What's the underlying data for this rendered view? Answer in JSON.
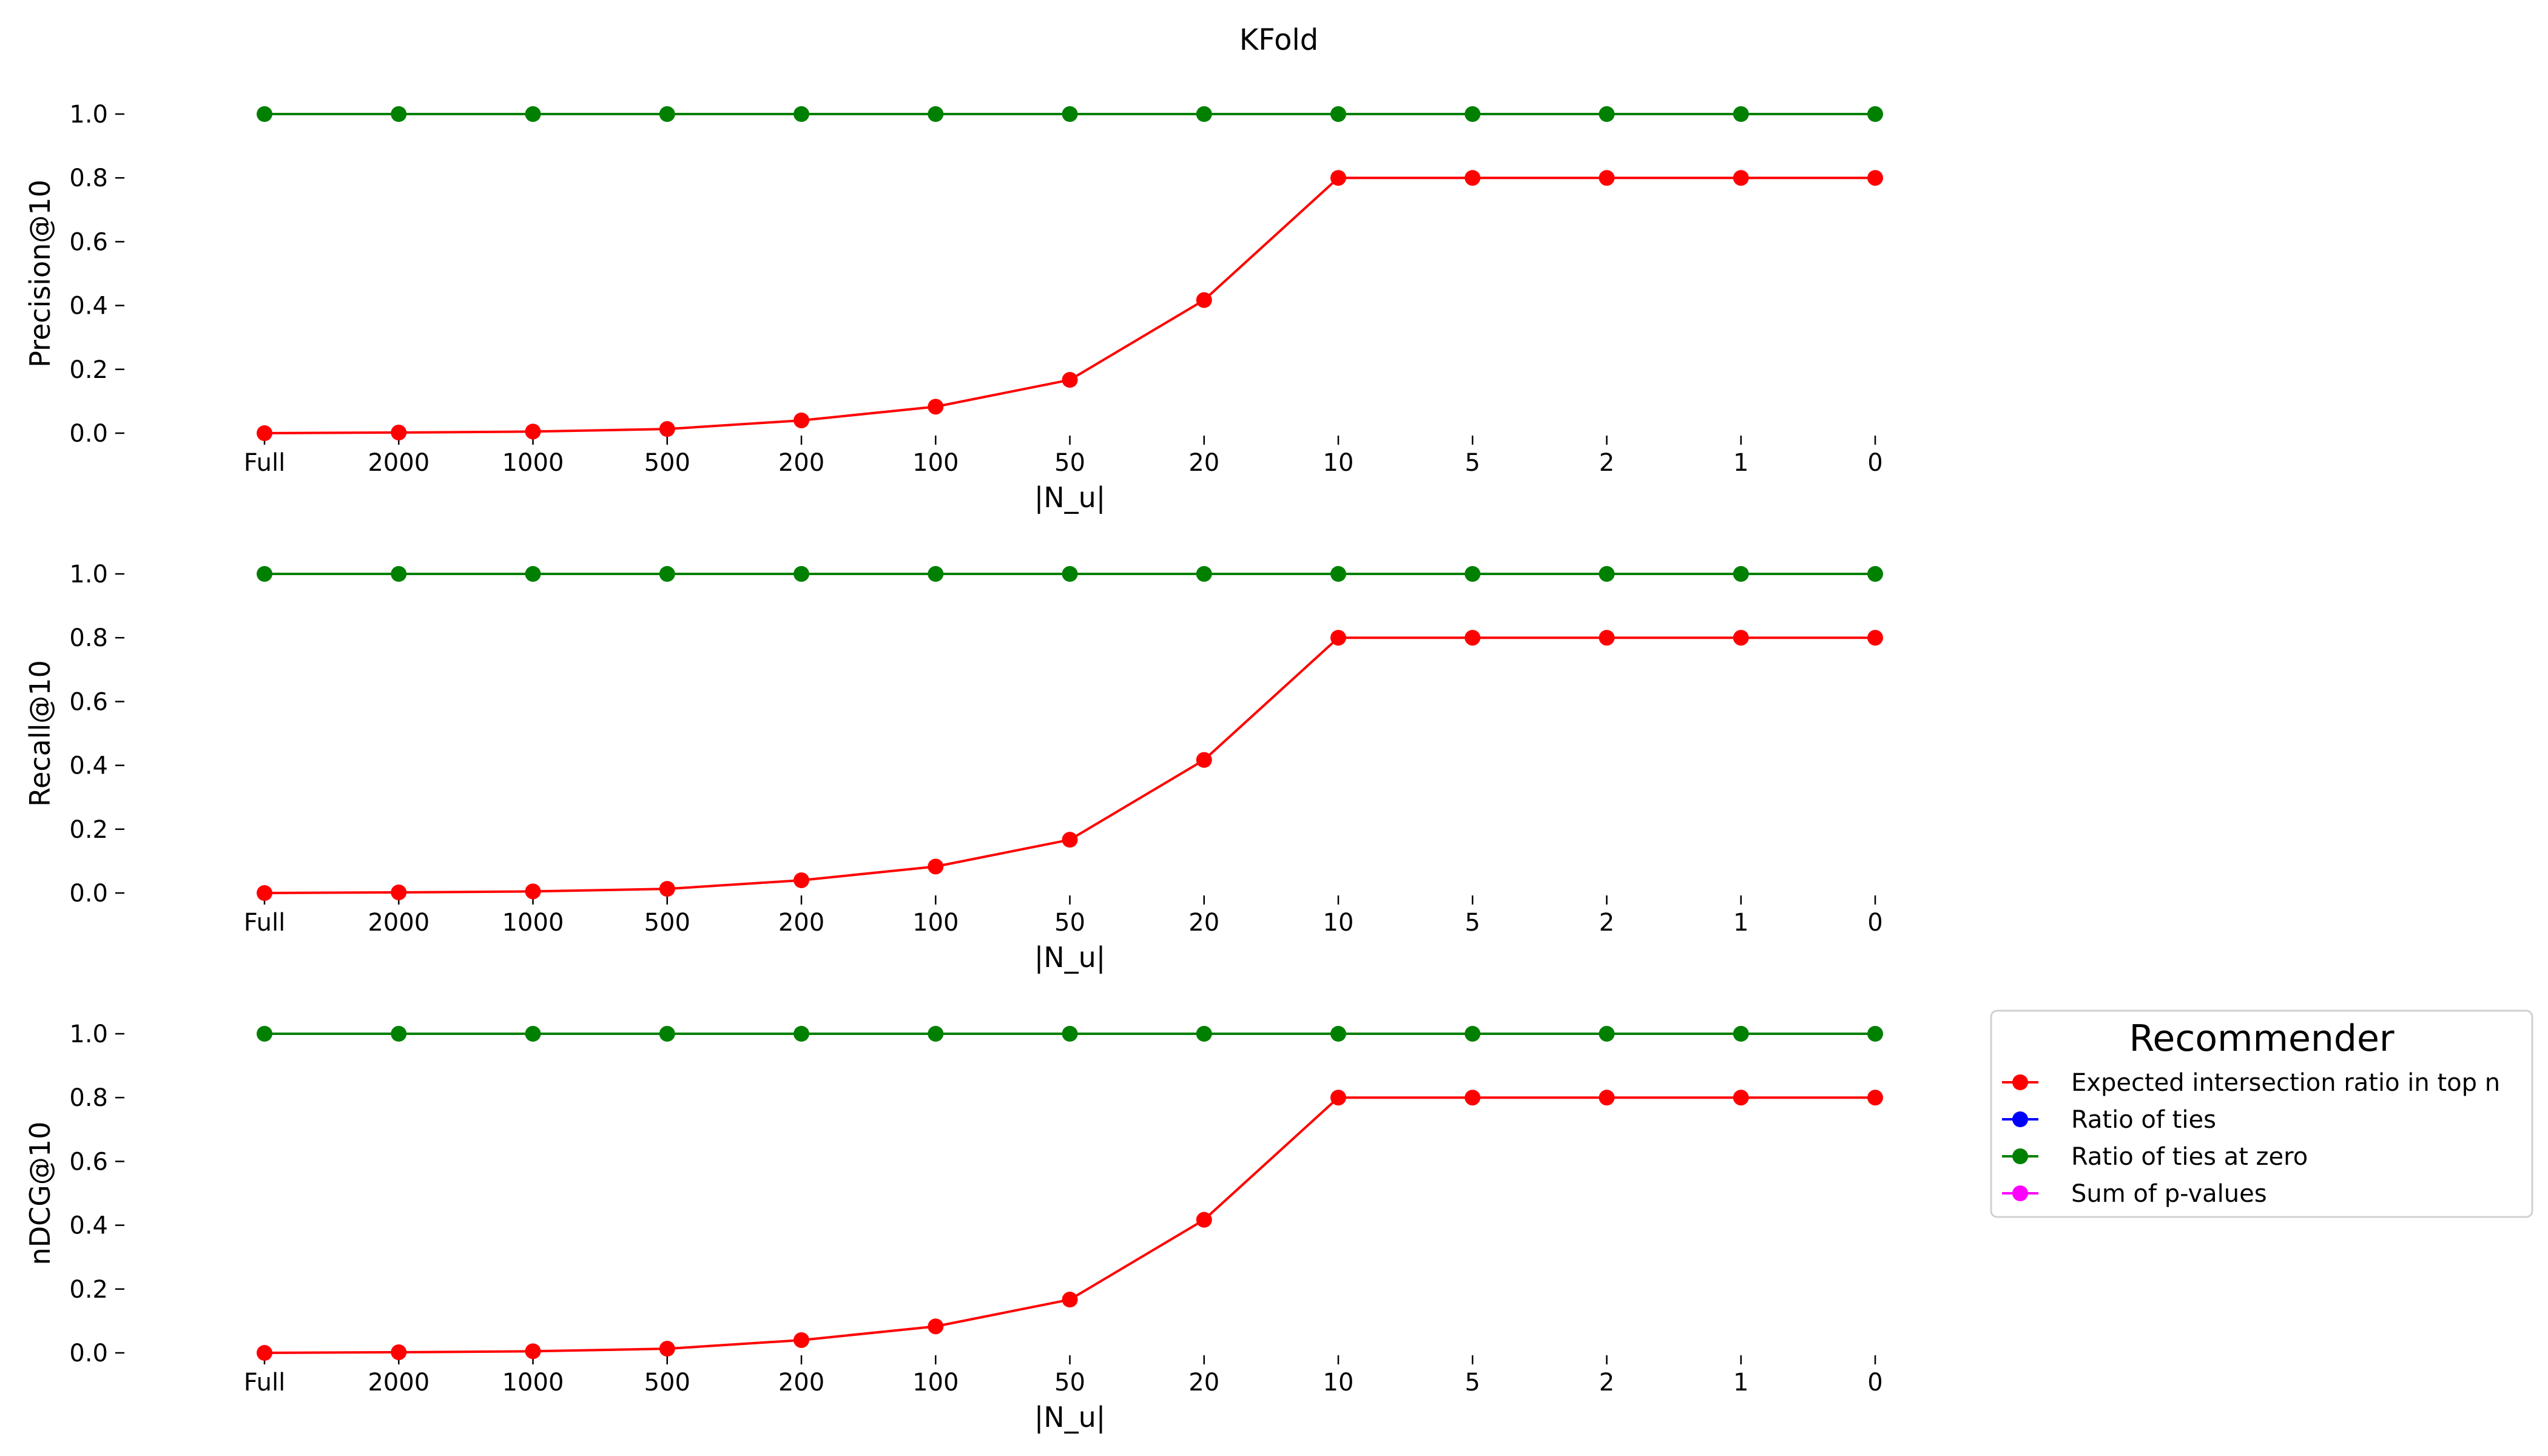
{
  "figure": {
    "title": "KFold"
  },
  "legend": {
    "title": "Recommender",
    "entries": [
      {
        "label": "Expected intersection ratio in top n",
        "color": "#ff0000"
      },
      {
        "label": "Ratio of ties",
        "color": "#0000ff"
      },
      {
        "label": "Ratio of ties at zero",
        "color": "#008000"
      },
      {
        "label": "Sum of p-values",
        "color": "#ff00ff"
      }
    ]
  },
  "chart_data": [
    {
      "type": "line",
      "title": "KFold",
      "xlabel": "|N_u|",
      "ylabel": "Precision@10",
      "categories": [
        "Full",
        "2000",
        "1000",
        "500",
        "200",
        "100",
        "50",
        "20",
        "10",
        "5",
        "2",
        "1",
        "0"
      ],
      "ylim": [
        0.0,
        1.0
      ],
      "yticks": [
        "0.0",
        "0.2",
        "0.4",
        "0.6",
        "0.8",
        "1.0"
      ],
      "grid": false,
      "series": [
        {
          "name": "Ratio of ties at zero",
          "color": "#008000",
          "values": [
            1,
            1,
            1,
            1,
            1,
            1,
            1,
            1,
            1,
            1,
            1,
            1,
            1
          ]
        },
        {
          "name": "Expected intersection ratio in top n",
          "color": "#ff0000",
          "values": [
            0.0,
            0.002,
            0.005,
            0.013,
            0.04,
            0.083,
            0.167,
            0.417,
            0.8,
            0.8,
            0.8,
            0.8,
            0.8
          ]
        }
      ]
    },
    {
      "type": "line",
      "xlabel": "|N_u|",
      "ylabel": "Recall@10",
      "categories": [
        "Full",
        "2000",
        "1000",
        "500",
        "200",
        "100",
        "50",
        "20",
        "10",
        "5",
        "2",
        "1",
        "0"
      ],
      "ylim": [
        0.0,
        1.0
      ],
      "yticks": [
        "0.0",
        "0.2",
        "0.4",
        "0.6",
        "0.8",
        "1.0"
      ],
      "grid": false,
      "series": [
        {
          "name": "Ratio of ties at zero",
          "color": "#008000",
          "values": [
            1,
            1,
            1,
            1,
            1,
            1,
            1,
            1,
            1,
            1,
            1,
            1,
            1
          ]
        },
        {
          "name": "Expected intersection ratio in top n",
          "color": "#ff0000",
          "values": [
            0.0,
            0.002,
            0.005,
            0.013,
            0.04,
            0.083,
            0.167,
            0.417,
            0.8,
            0.8,
            0.8,
            0.8,
            0.8
          ]
        }
      ]
    },
    {
      "type": "line",
      "xlabel": "|N_u|",
      "ylabel": "nDCG@10",
      "categories": [
        "Full",
        "2000",
        "1000",
        "500",
        "200",
        "100",
        "50",
        "20",
        "10",
        "5",
        "2",
        "1",
        "0"
      ],
      "ylim": [
        0.0,
        1.0
      ],
      "yticks": [
        "0.0",
        "0.2",
        "0.4",
        "0.6",
        "0.8",
        "1.0"
      ],
      "grid": false,
      "series": [
        {
          "name": "Ratio of ties at zero",
          "color": "#008000",
          "values": [
            1,
            1,
            1,
            1,
            1,
            1,
            1,
            1,
            1,
            1,
            1,
            1,
            1
          ]
        },
        {
          "name": "Expected intersection ratio in top n",
          "color": "#ff0000",
          "values": [
            0.0,
            0.002,
            0.005,
            0.013,
            0.04,
            0.083,
            0.167,
            0.417,
            0.8,
            0.8,
            0.8,
            0.8,
            0.8
          ]
        }
      ]
    }
  ]
}
